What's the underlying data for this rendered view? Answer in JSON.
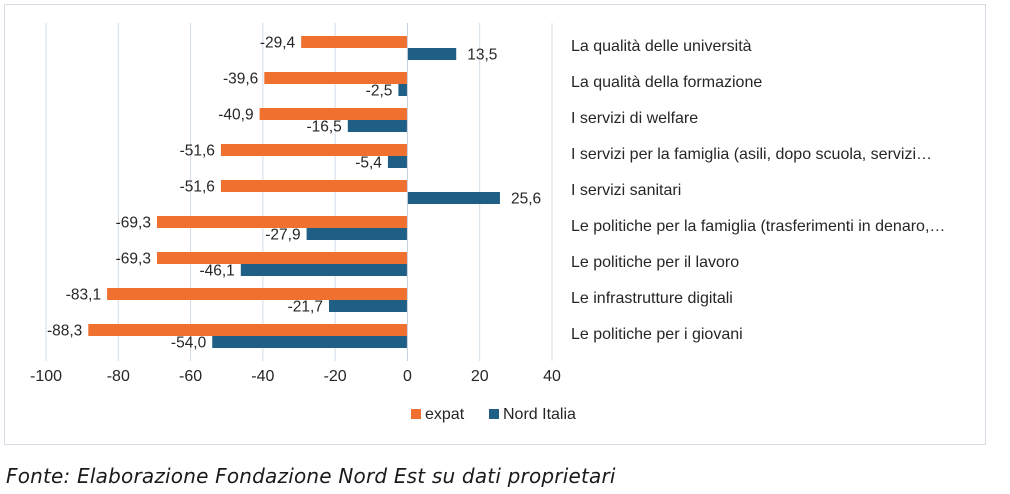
{
  "chart_data": {
    "type": "bar",
    "orientation": "horizontal",
    "categories": [
      "La qualità delle università",
      "La qualità della formazione",
      "I servizi di welfare",
      "I servizi per la famiglia (asili, dopo scuola, servizi…",
      "I servizi sanitari",
      "Le politiche per la famiglia (trasferimenti in denaro,…",
      "Le politiche per il lavoro",
      "Le infrastrutture digitali",
      "Le politiche per i giovani"
    ],
    "series": [
      {
        "name": "expat",
        "color": "#f07030",
        "values": [
          -29.4,
          -39.6,
          -40.9,
          -51.6,
          -51.6,
          -69.3,
          -69.3,
          -83.1,
          -88.3
        ],
        "labels": [
          "-29,4",
          "-39,6",
          "-40,9",
          "-51,6",
          "-51,6",
          "-69,3",
          "-69,3",
          "-83,1",
          "-88,3"
        ]
      },
      {
        "name": "Nord Italia",
        "color": "#1f5f86",
        "values": [
          13.5,
          -2.5,
          -16.5,
          -5.4,
          25.6,
          -27.9,
          -46.1,
          -21.7,
          -54.0
        ],
        "labels": [
          "13,5",
          "-2,5",
          "-16,5",
          "-5,4",
          "25,6",
          "-27,9",
          "-46,1",
          "-21,7",
          "-54,0"
        ]
      }
    ],
    "xlim": [
      -100,
      40
    ],
    "xticks": [
      -100,
      -80,
      -60,
      -40,
      -20,
      0,
      20,
      40
    ],
    "xtick_labels": [
      "-100",
      "-80",
      "-60",
      "-40",
      "-20",
      "0",
      "20",
      "40"
    ],
    "grid": true,
    "legend_position": "bottom",
    "title": "",
    "xlabel": "",
    "ylabel": ""
  },
  "source_note": "Fonte: Elaborazione Fondazione Nord Est su dati proprietari"
}
